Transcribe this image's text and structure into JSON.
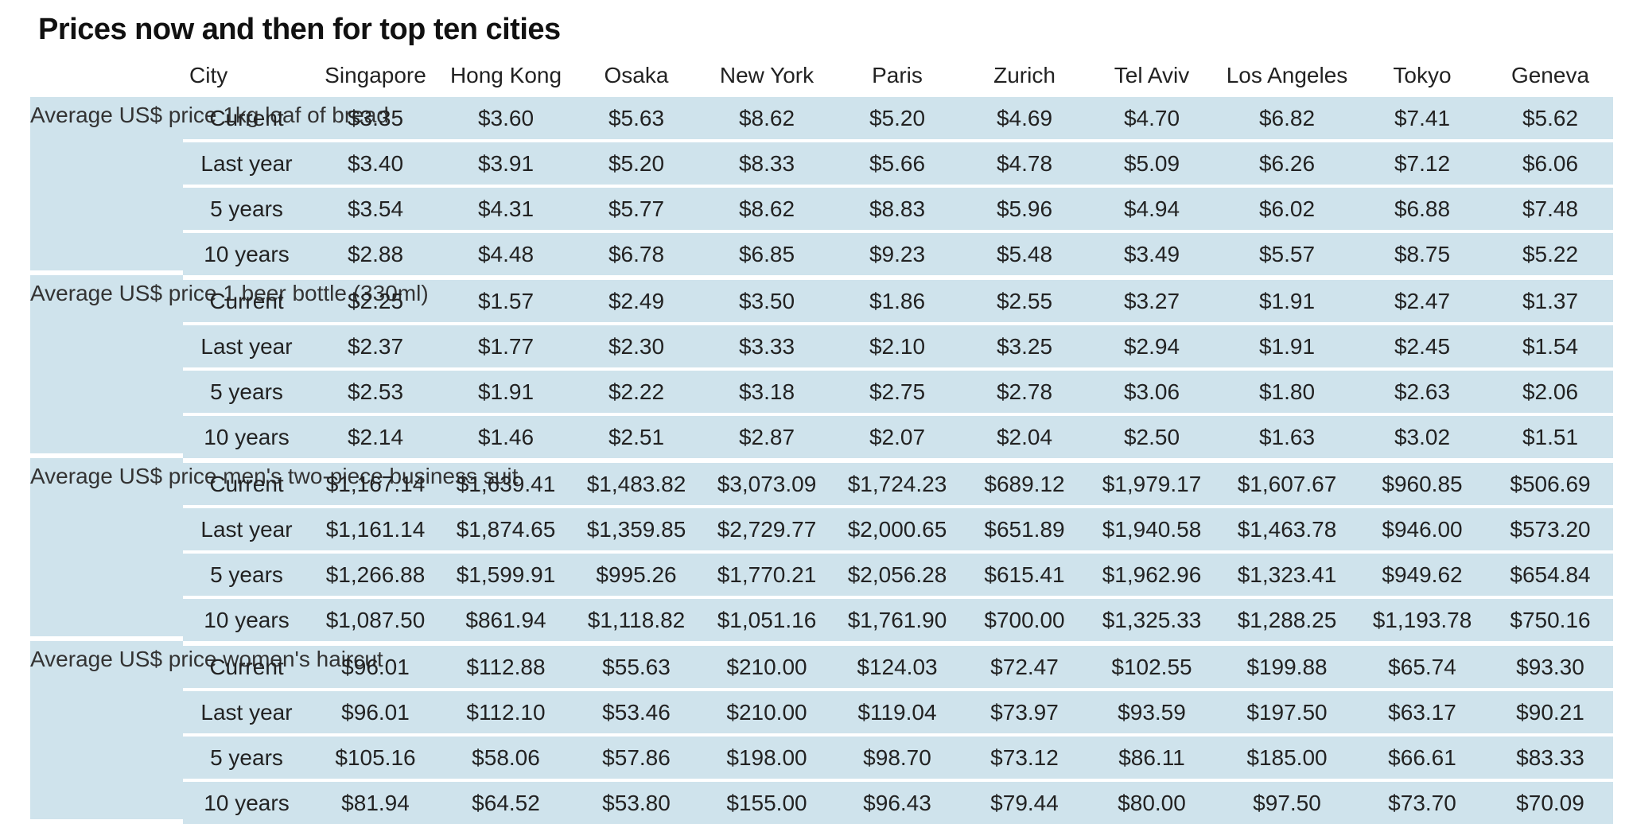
{
  "title": "Prices now and then for top ten cities",
  "header": {
    "city_label": "City",
    "cities": [
      "Singapore",
      "Hong Kong",
      "Osaka",
      "New York",
      "Paris",
      "Zurich",
      "Tel Aviv",
      "Los Angeles",
      "Tokyo",
      "Geneva"
    ]
  },
  "colors": {
    "row_background": "#cfe3ec",
    "separator": "#ffffff"
  },
  "groups": [
    {
      "category": "Average US$ price 1kg loaf of bread",
      "rows": [
        {
          "period": "Current",
          "values": [
            "$3.35",
            "$3.60",
            "$5.63",
            "$8.62",
            "$5.20",
            "$4.69",
            "$4.70",
            "$6.82",
            "$7.41",
            "$5.62"
          ]
        },
        {
          "period": "Last year",
          "values": [
            "$3.40",
            "$3.91",
            "$5.20",
            "$8.33",
            "$5.66",
            "$4.78",
            "$5.09",
            "$6.26",
            "$7.12",
            "$6.06"
          ]
        },
        {
          "period": "5 years",
          "values": [
            "$3.54",
            "$4.31",
            "$5.77",
            "$8.62",
            "$8.83",
            "$5.96",
            "$4.94",
            "$6.02",
            "$6.88",
            "$7.48"
          ]
        },
        {
          "period": "10 years",
          "values": [
            "$2.88",
            "$4.48",
            "$6.78",
            "$6.85",
            "$9.23",
            "$5.48",
            "$3.49",
            "$5.57",
            "$8.75",
            "$5.22"
          ]
        }
      ]
    },
    {
      "category": "Average US$ price 1 beer bottle (330ml)",
      "rows": [
        {
          "period": "Current",
          "values": [
            "$2.25",
            "$1.57",
            "$2.49",
            "$3.50",
            "$1.86",
            "$2.55",
            "$3.27",
            "$1.91",
            "$2.47",
            "$1.37"
          ]
        },
        {
          "period": "Last year",
          "values": [
            "$2.37",
            "$1.77",
            "$2.30",
            "$3.33",
            "$2.10",
            "$3.25",
            "$2.94",
            "$1.91",
            "$2.45",
            "$1.54"
          ]
        },
        {
          "period": "5 years",
          "values": [
            "$2.53",
            "$1.91",
            "$2.22",
            "$3.18",
            "$2.75",
            "$2.78",
            "$3.06",
            "$1.80",
            "$2.63",
            "$2.06"
          ]
        },
        {
          "period": "10 years",
          "values": [
            "$2.14",
            "$1.46",
            "$2.51",
            "$2.87",
            "$2.07",
            "$2.04",
            "$2.50",
            "$1.63",
            "$3.02",
            "$1.51"
          ]
        }
      ]
    },
    {
      "category": "Average US$ price men's two-piece business suit",
      "rows": [
        {
          "period": "Current",
          "values": [
            "$1,167.14",
            "$1,639.41",
            "$1,483.82",
            "$3,073.09",
            "$1,724.23",
            "$689.12",
            "$1,979.17",
            "$1,607.67",
            "$960.85",
            "$506.69"
          ]
        },
        {
          "period": "Last year",
          "values": [
            "$1,161.14",
            "$1,874.65",
            "$1,359.85",
            "$2,729.77",
            "$2,000.65",
            "$651.89",
            "$1,940.58",
            "$1,463.78",
            "$946.00",
            "$573.20"
          ]
        },
        {
          "period": "5 years",
          "values": [
            "$1,266.88",
            "$1,599.91",
            "$995.26",
            "$1,770.21",
            "$2,056.28",
            "$615.41",
            "$1,962.96",
            "$1,323.41",
            "$949.62",
            "$654.84"
          ]
        },
        {
          "period": "10 years",
          "values": [
            "$1,087.50",
            "$861.94",
            "$1,118.82",
            "$1,051.16",
            "$1,761.90",
            "$700.00",
            "$1,325.33",
            "$1,288.25",
            "$1,193.78",
            "$750.16"
          ]
        }
      ]
    },
    {
      "category": "Average US$ price women's haircut",
      "rows": [
        {
          "period": "Current",
          "values": [
            "$96.01",
            "$112.88",
            "$55.63",
            "$210.00",
            "$124.03",
            "$72.47",
            "$102.55",
            "$199.88",
            "$65.74",
            "$93.30"
          ]
        },
        {
          "period": "Last year",
          "values": [
            "$96.01",
            "$112.10",
            "$53.46",
            "$210.00",
            "$119.04",
            "$73.97",
            "$93.59",
            "$197.50",
            "$63.17",
            "$90.21"
          ]
        },
        {
          "period": "5 years",
          "values": [
            "$105.16",
            "$58.06",
            "$57.86",
            "$198.00",
            "$98.70",
            "$73.12",
            "$86.11",
            "$185.00",
            "$66.61",
            "$83.33"
          ]
        },
        {
          "period": "10 years",
          "values": [
            "$81.94",
            "$64.52",
            "$53.80",
            "$155.00",
            "$96.43",
            "$79.44",
            "$80.00",
            "$97.50",
            "$73.70",
            "$70.09"
          ]
        }
      ]
    }
  ]
}
